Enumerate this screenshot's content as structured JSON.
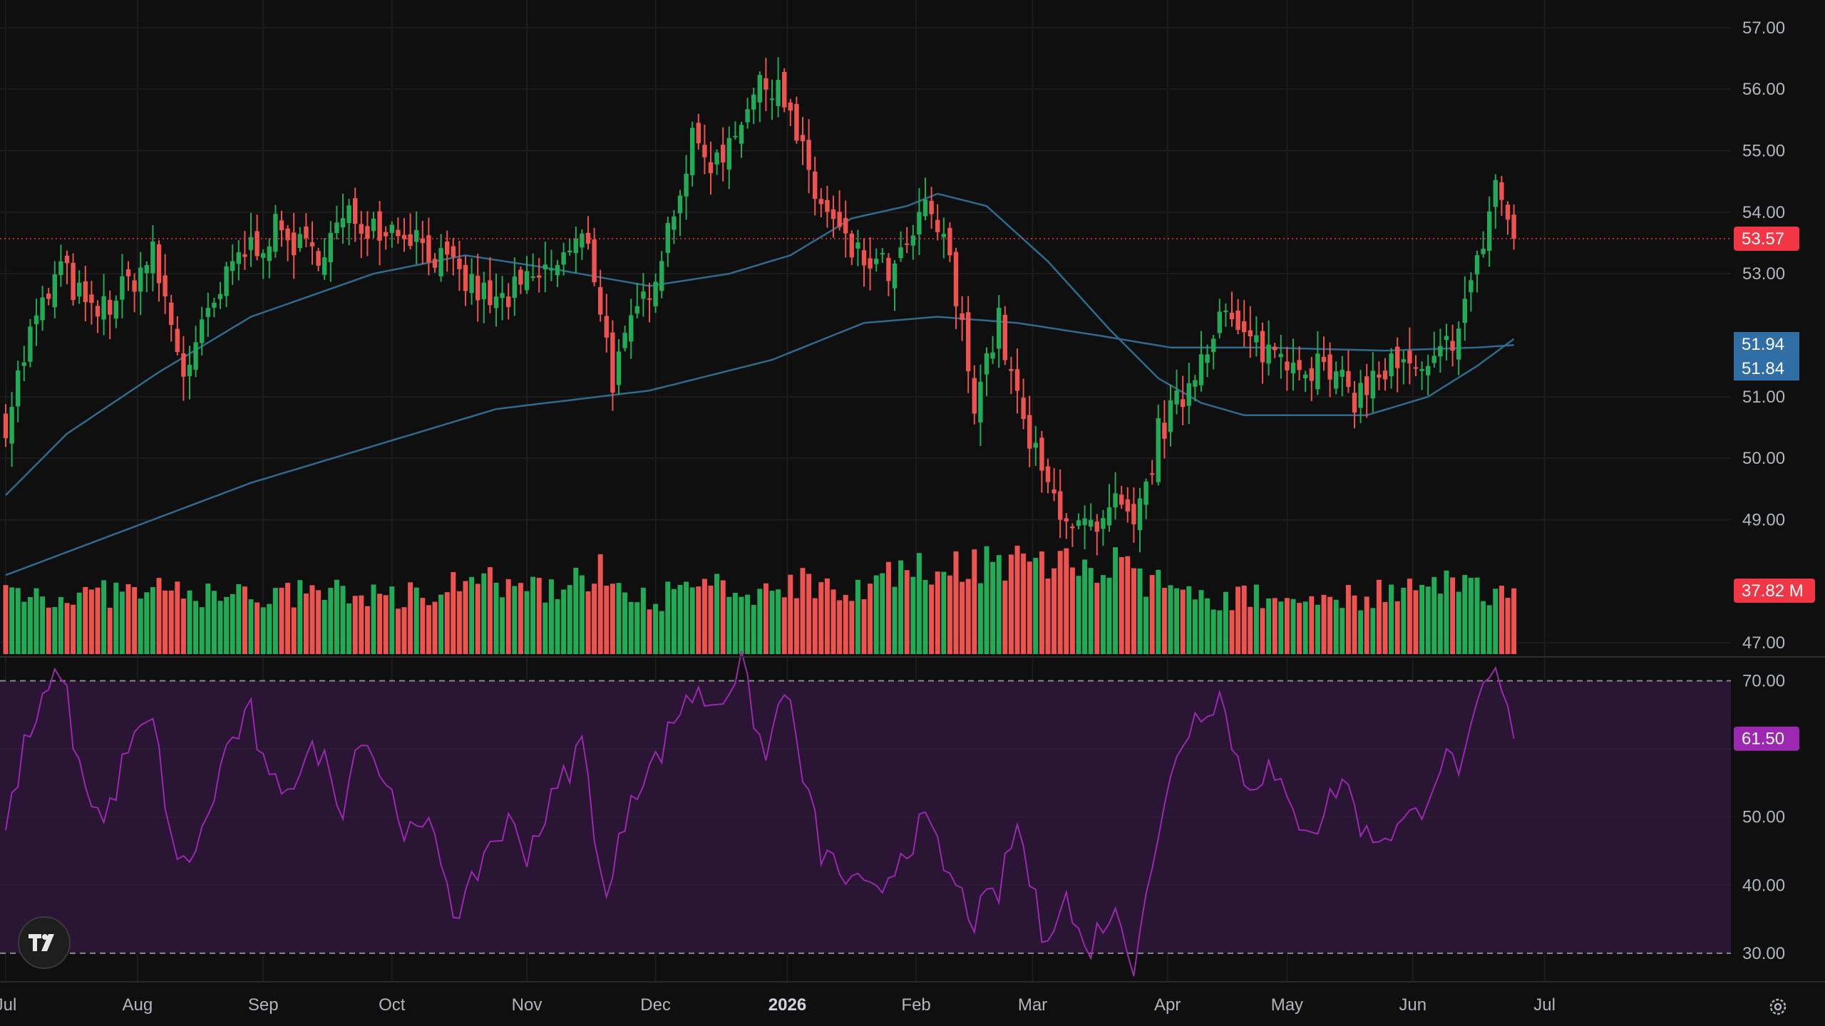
{
  "chart_data": {
    "type": "candlestick",
    "price_axis": {
      "ticks": [
        "57.00",
        "56.00",
        "55.00",
        "54.00",
        "53.00",
        "51.00",
        "50.00",
        "49.00",
        "47.00"
      ],
      "tick_values": [
        57,
        56,
        55,
        54,
        53,
        51,
        50,
        49,
        47
      ],
      "range": [
        46.77,
        57.45
      ]
    },
    "rsi_axis": {
      "ticks": [
        "70.00",
        "50.00",
        "40.00",
        "30.00"
      ],
      "tick_values": [
        70,
        50,
        40,
        30
      ],
      "band": [
        30,
        70
      ],
      "range": [
        25.8,
        73.5
      ]
    },
    "x_axis": {
      "labels": [
        "Jul",
        "Aug",
        "Sep",
        "Oct",
        "Nov",
        "Dec",
        "2026",
        "Feb",
        "Mar",
        "Apr",
        "May",
        "Jun",
        "Jul"
      ],
      "label_day_index": [
        0,
        21.5,
        42,
        63,
        85,
        106,
        127.5,
        148.5,
        167.5,
        189.5,
        209,
        229.5,
        251
      ],
      "bold": [
        "2026"
      ]
    },
    "last_price": 53.57,
    "ma_values": [
      "51.94",
      "51.84"
    ],
    "volume_label": "37.82 M",
    "rsi_label": "61.50",
    "rsi_last": 61.5,
    "colors": {
      "up": "#26a69a",
      "up_vol": "#22ab56",
      "down": "#ef5350",
      "ma": "#2f6b8e",
      "rsi": "#9c27b0",
      "rsi_band": "#2a1535",
      "price_tag": "#f23645",
      "ma_tag": "#2f6fa6",
      "rsi_tag": "#9c27b0",
      "background": "#0f0f0f",
      "grid": "#1c1c1c"
    },
    "anchors": [
      [
        0,
        50.6
      ],
      [
        4,
        52.0
      ],
      [
        9,
        53.1
      ],
      [
        14,
        52.3
      ],
      [
        18,
        52.6
      ],
      [
        24,
        53.3
      ],
      [
        29,
        51.4
      ],
      [
        38,
        53.3
      ],
      [
        44,
        53.7
      ],
      [
        50,
        53.3
      ],
      [
        56,
        53.9
      ],
      [
        66,
        53.7
      ],
      [
        73,
        53.0
      ],
      [
        80,
        52.5
      ],
      [
        88,
        53.0
      ],
      [
        95,
        53.6
      ],
      [
        99,
        51.3
      ],
      [
        106,
        53.1
      ],
      [
        112,
        55.1
      ],
      [
        116,
        54.8
      ],
      [
        121,
        55.8
      ],
      [
        126,
        56.2
      ],
      [
        128,
        55.5
      ],
      [
        132,
        54.3
      ],
      [
        138,
        53.3
      ],
      [
        145,
        53.0
      ],
      [
        150,
        54.0
      ],
      [
        153,
        53.6
      ],
      [
        158,
        51.0
      ],
      [
        162,
        52.2
      ],
      [
        166,
        50.5
      ],
      [
        170,
        49.5
      ],
      [
        174,
        49.0
      ],
      [
        178,
        48.7
      ],
      [
        181,
        49.2
      ],
      [
        184,
        48.8
      ],
      [
        186,
        49.5
      ],
      [
        188,
        50.4
      ],
      [
        192,
        51.0
      ],
      [
        198,
        52.4
      ],
      [
        202,
        51.9
      ],
      [
        208,
        51.7
      ],
      [
        214,
        51.5
      ],
      [
        220,
        51.0
      ],
      [
        226,
        51.5
      ],
      [
        232,
        51.3
      ],
      [
        236,
        52.0
      ],
      [
        240,
        53.1
      ],
      [
        243,
        54.5
      ],
      [
        246,
        53.57
      ]
    ],
    "ma_fast_anchors": [
      [
        0,
        49.4
      ],
      [
        10,
        50.4
      ],
      [
        25,
        51.4
      ],
      [
        40,
        52.3
      ],
      [
        60,
        53.0
      ],
      [
        75,
        53.3
      ],
      [
        88,
        53.1
      ],
      [
        105,
        52.8
      ],
      [
        118,
        53.0
      ],
      [
        128,
        53.3
      ],
      [
        138,
        53.9
      ],
      [
        147,
        54.1
      ],
      [
        152,
        54.3
      ],
      [
        160,
        54.1
      ],
      [
        170,
        53.2
      ],
      [
        180,
        52.1
      ],
      [
        188,
        51.3
      ],
      [
        195,
        50.9
      ],
      [
        202,
        50.7
      ],
      [
        212,
        50.7
      ],
      [
        222,
        50.7
      ],
      [
        232,
        51.0
      ],
      [
        240,
        51.5
      ],
      [
        246,
        51.94
      ]
    ],
    "ma_slow_anchors": [
      [
        0,
        48.1
      ],
      [
        40,
        49.6
      ],
      [
        80,
        50.8
      ],
      [
        105,
        51.1
      ],
      [
        125,
        51.6
      ],
      [
        140,
        52.2
      ],
      [
        152,
        52.3
      ],
      [
        165,
        52.2
      ],
      [
        178,
        52.0
      ],
      [
        190,
        51.8
      ],
      [
        205,
        51.8
      ],
      [
        225,
        51.75
      ],
      [
        240,
        51.8
      ],
      [
        246,
        51.84
      ]
    ],
    "rsi_anchors": [
      [
        0,
        48
      ],
      [
        3,
        60
      ],
      [
        6,
        66
      ],
      [
        9,
        72
      ],
      [
        12,
        57
      ],
      [
        16,
        49
      ],
      [
        20,
        60
      ],
      [
        24,
        64
      ],
      [
        28,
        42
      ],
      [
        32,
        47
      ],
      [
        36,
        60
      ],
      [
        40,
        65
      ],
      [
        43,
        54
      ],
      [
        47,
        56
      ],
      [
        51,
        60
      ],
      [
        55,
        52
      ],
      [
        58,
        63
      ],
      [
        62,
        55
      ],
      [
        66,
        47
      ],
      [
        70,
        48
      ],
      [
        74,
        34
      ],
      [
        78,
        45
      ],
      [
        82,
        49
      ],
      [
        85,
        45
      ],
      [
        89,
        52
      ],
      [
        94,
        61
      ],
      [
        98,
        37
      ],
      [
        102,
        54
      ],
      [
        106,
        58
      ],
      [
        111,
        68
      ],
      [
        116,
        67
      ],
      [
        120,
        72
      ],
      [
        124,
        58
      ],
      [
        127,
        70
      ],
      [
        129,
        60
      ],
      [
        133,
        45
      ],
      [
        138,
        40
      ],
      [
        142,
        38
      ],
      [
        146,
        45
      ],
      [
        150,
        49
      ],
      [
        154,
        41
      ],
      [
        158,
        35
      ],
      [
        162,
        39
      ],
      [
        165,
        49
      ],
      [
        169,
        33
      ],
      [
        173,
        38
      ],
      [
        176,
        30
      ],
      [
        180,
        36
      ],
      [
        182,
        34
      ],
      [
        184,
        29
      ],
      [
        186,
        40
      ],
      [
        188,
        46
      ],
      [
        191,
        60
      ],
      [
        195,
        66
      ],
      [
        198,
        68
      ],
      [
        202,
        55
      ],
      [
        206,
        57
      ],
      [
        210,
        50
      ],
      [
        214,
        49
      ],
      [
        218,
        56
      ],
      [
        222,
        47
      ],
      [
        226,
        48
      ],
      [
        230,
        50
      ],
      [
        234,
        58
      ],
      [
        238,
        58
      ],
      [
        241,
        68
      ],
      [
        243,
        71
      ],
      [
        246,
        61.5
      ]
    ],
    "vol_anchors": [
      [
        0,
        34
      ],
      [
        10,
        30
      ],
      [
        20,
        32
      ],
      [
        30,
        32
      ],
      [
        40,
        30
      ],
      [
        55,
        32
      ],
      [
        65,
        30
      ],
      [
        75,
        40
      ],
      [
        85,
        32
      ],
      [
        98,
        43
      ],
      [
        106,
        28
      ],
      [
        113,
        37
      ],
      [
        120,
        30
      ],
      [
        128,
        38
      ],
      [
        138,
        36
      ],
      [
        148,
        42
      ],
      [
        155,
        48
      ],
      [
        165,
        48
      ],
      [
        172,
        48
      ],
      [
        180,
        46
      ],
      [
        185,
        40
      ],
      [
        192,
        30
      ],
      [
        205,
        29
      ],
      [
        220,
        30
      ],
      [
        235,
        35
      ],
      [
        246,
        33
      ]
    ],
    "volume_scale_max": 78
  }
}
